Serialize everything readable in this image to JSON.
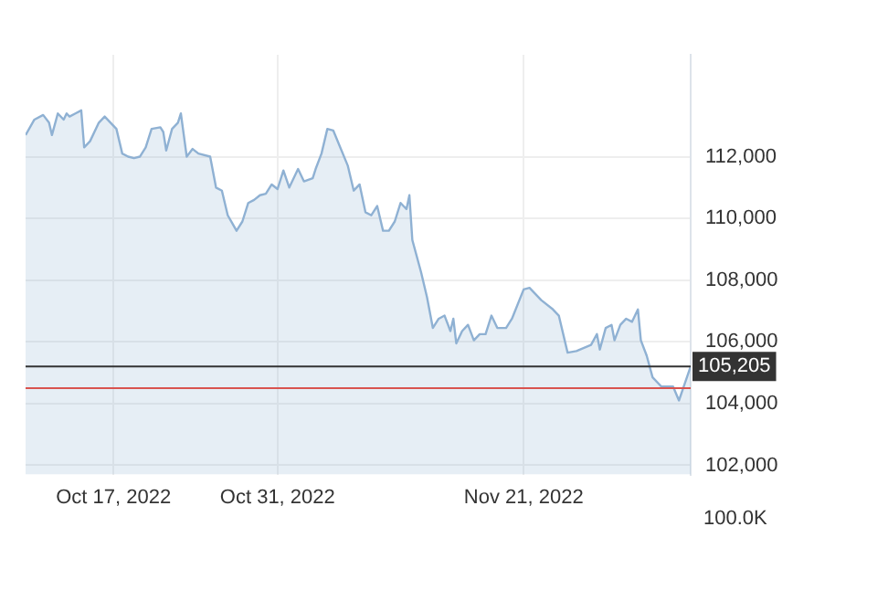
{
  "chart_data": {
    "type": "area",
    "x": [
      "2022-10-09T12:00",
      "2022-10-10T06:00",
      "2022-10-11T00:00",
      "2022-10-11T12:00",
      "2022-10-11T18:00",
      "2022-10-12T06:00",
      "2022-10-12T18:00",
      "2022-10-13T00:00",
      "2022-10-13T06:00",
      "2022-10-13T18:00",
      "2022-10-14T06:00",
      "2022-10-14T12:00",
      "2022-10-15T00:00",
      "2022-10-15T18:00",
      "2022-10-16T06:00",
      "2022-10-16T18:00",
      "2022-10-17T06:00",
      "2022-10-17T18:00",
      "2022-10-18T06:00",
      "2022-10-18T18:00",
      "2022-10-19T06:00",
      "2022-10-19T18:00",
      "2022-10-20T06:00",
      "2022-10-21T00:00",
      "2022-10-21T06:00",
      "2022-10-21T12:00",
      "2022-10-22T00:00",
      "2022-10-22T12:00",
      "2022-10-22T18:00",
      "2022-10-23T06:00",
      "2022-10-23T18:00",
      "2022-10-24T06:00",
      "2022-10-25T06:00",
      "2022-10-25T18:00",
      "2022-10-26T06:00",
      "2022-10-26T18:00",
      "2022-10-27T12:00",
      "2022-10-28T00:00",
      "2022-10-28T12:00",
      "2022-10-29T00:00",
      "2022-10-29T12:00",
      "2022-10-30T00:00",
      "2022-10-30T12:00",
      "2022-10-31T00:00",
      "2022-10-31T12:00",
      "2022-11-01T00:00",
      "2022-11-01T12:00",
      "2022-11-01T18:00",
      "2022-11-02T06:00",
      "2022-11-03T00:00",
      "2022-11-03T06:00",
      "2022-11-03T18:00",
      "2022-11-04T06:00",
      "2022-11-04T18:00",
      "2022-11-06T00:00",
      "2022-11-06T12:00",
      "2022-11-07T00:00",
      "2022-11-07T12:00",
      "2022-11-08T00:00",
      "2022-11-08T12:00",
      "2022-11-09T00:00",
      "2022-11-09T12:00",
      "2022-11-10T00:00",
      "2022-11-10T12:00",
      "2022-11-11T00:00",
      "2022-11-11T06:00",
      "2022-11-11T12:00",
      "2022-11-12T06:00",
      "2022-11-12T18:00",
      "2022-11-13T06:00",
      "2022-11-13T18:00",
      "2022-11-14T06:00",
      "2022-11-14T18:00",
      "2022-11-15T00:00",
      "2022-11-15T06:00",
      "2022-11-15T18:00",
      "2022-11-16T06:00",
      "2022-11-16T18:00",
      "2022-11-17T06:00",
      "2022-11-17T18:00",
      "2022-11-18T06:00",
      "2022-11-18T18:00",
      "2022-11-19T12:00",
      "2022-11-20T00:00",
      "2022-11-21T00:00",
      "2022-11-21T12:00",
      "2022-11-22T12:00",
      "2022-11-23T12:00",
      "2022-11-24T00:00",
      "2022-11-24T18:00",
      "2022-11-25T12:00",
      "2022-11-26T18:00",
      "2022-11-27T06:00",
      "2022-11-27T12:00",
      "2022-11-28T00:00",
      "2022-11-28T12:00",
      "2022-11-28T18:00",
      "2022-11-29T06:00",
      "2022-11-29T18:00",
      "2022-11-30T06:00",
      "2022-11-30T18:00",
      "2022-12-01T00:00",
      "2022-12-01T12:00",
      "2022-12-02T00:00",
      "2022-12-02T18:00",
      "2022-12-03T18:00",
      "2022-12-04T06:00",
      "2022-12-04T18:00",
      "2022-12-05T06:00"
    ],
    "values": [
      112700,
      113200,
      113350,
      113100,
      112700,
      113400,
      113200,
      113400,
      113300,
      113400,
      113500,
      112300,
      112500,
      113100,
      113300,
      113100,
      112900,
      112100,
      112000,
      111950,
      112000,
      112300,
      112900,
      112950,
      112800,
      112200,
      112900,
      113100,
      113400,
      112000,
      112250,
      112100,
      112000,
      111000,
      110900,
      110100,
      109600,
      109900,
      110500,
      110600,
      110750,
      110800,
      111100,
      110950,
      111550,
      111000,
      111400,
      111600,
      111200,
      111300,
      111600,
      112100,
      112900,
      112850,
      111700,
      110900,
      111100,
      110200,
      110100,
      110400,
      109600,
      109600,
      109900,
      110500,
      110300,
      110750,
      109300,
      108250,
      107450,
      106450,
      106750,
      106850,
      106350,
      106750,
      105950,
      106350,
      106550,
      106050,
      106250,
      106250,
      106850,
      106450,
      106450,
      106750,
      107700,
      107750,
      107350,
      107050,
      106850,
      105650,
      105700,
      105900,
      106250,
      105750,
      106450,
      106550,
      106050,
      106550,
      106750,
      106650,
      107050,
      106050,
      105550,
      104850,
      104550,
      104550,
      104100,
      104650,
      105205
    ],
    "color": "#8fb1d3",
    "xlim": [
      "2022-10-09T12:00",
      "2022-12-05T06:00"
    ],
    "xticks": [
      {
        "value": "2022-10-17",
        "label": "Oct 17, 2022"
      },
      {
        "value": "2022-10-31",
        "label": "Oct 31, 2022"
      },
      {
        "value": "2022-11-21",
        "label": "Nov 21, 2022"
      }
    ],
    "ylim": [
      101700,
      115300
    ],
    "yticks": [
      {
        "value": 102000,
        "label": "102,000"
      },
      {
        "value": 104000,
        "label": "104,000"
      },
      {
        "value": 106000,
        "label": "106,000"
      },
      {
        "value": 108000,
        "label": "108,000"
      },
      {
        "value": 110000,
        "label": "110,000"
      },
      {
        "value": 112000,
        "label": "112,000"
      }
    ],
    "ref_lines": [
      {
        "axis": "y",
        "value": 105205,
        "label": "105,205",
        "color": "#333333"
      },
      {
        "axis": "y",
        "value": 104500,
        "color": "#d9534f"
      }
    ],
    "annotations": [
      "100.0K"
    ],
    "grid": true,
    "legend": false,
    "marker": "none",
    "line_style": "solid"
  }
}
